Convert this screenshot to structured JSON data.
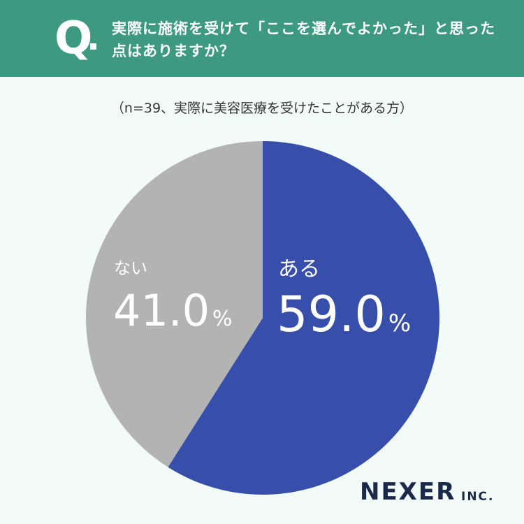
{
  "header": {
    "mark": "Q",
    "question": "実際に施術を受けて「ここを選んでよかった」と思った点はありますか？"
  },
  "subtitle": "（n=39、実際に美容医療を受けたことがある方）",
  "chart_data": {
    "type": "pie",
    "categories": [
      "ある",
      "ない"
    ],
    "values": [
      59.0,
      41.0
    ],
    "value_labels": [
      "59.0",
      "41.0"
    ],
    "unit": "%",
    "colors": [
      "#374fab",
      "#b3b3b3"
    ],
    "start": "12 o'clock",
    "direction": "clockwise"
  },
  "logo": {
    "name": "NEXER",
    "suffix": "INC."
  }
}
